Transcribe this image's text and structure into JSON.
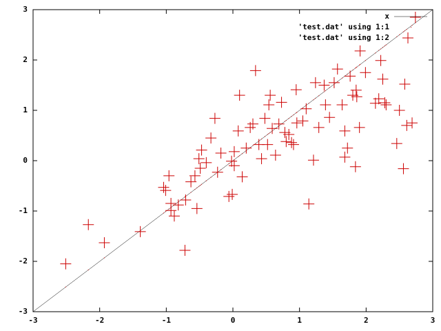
{
  "chart_data": {
    "type": "scatter",
    "xlim": [
      -3,
      3
    ],
    "ylim": [
      -3,
      3
    ],
    "xticks": [
      -3,
      -2,
      -1,
      0,
      1,
      2,
      3
    ],
    "yticks": [
      -3,
      -2,
      -1,
      0,
      1,
      2,
      3
    ],
    "legend": "top-right",
    "series": [
      {
        "name": "x",
        "style": "line",
        "color": "#000000",
        "x": [
          -3,
          3
        ],
        "values": [
          -3,
          3
        ]
      },
      {
        "name": "'test.dat' using 1:1",
        "style": "dots",
        "color": "#cc0000",
        "x": [
          -2.51,
          -2.17,
          -1.93,
          -1.39,
          -1.04,
          -0.96,
          -0.93,
          -0.88,
          -0.82,
          -0.71,
          -0.72,
          -1.01,
          -0.93,
          -0.63,
          -0.57,
          -0.54,
          -0.51,
          -0.49,
          -0.47,
          -0.4,
          -0.33,
          -0.27,
          -0.23,
          -0.18,
          -0.06,
          -0.01,
          -0.02,
          0.02,
          0.1,
          0.08,
          0.14,
          0.2,
          0.26,
          0.3,
          0.34,
          0.39,
          0.43,
          0.48,
          0.54,
          0.59,
          0.56,
          0.64,
          0.69,
          0.73,
          0.78,
          0.84,
          0.88,
          0.96,
          0.95,
          1.05,
          1.1,
          1.14,
          1.21,
          1.24,
          1.29,
          1.39,
          1.45,
          1.52,
          1.57,
          1.64,
          1.68,
          1.68,
          1.72,
          1.76,
          1.8,
          1.84,
          1.86,
          1.9,
          1.91,
          1.99,
          2.14,
          2.19,
          2.22,
          2.25,
          2.3,
          2.46,
          2.5,
          2.56,
          2.58,
          2.61,
          2.69,
          2.74,
          0.02,
          0.52,
          0.8,
          0.91,
          1.37,
          1.85,
          2.28
        ],
        "values": [
          -2.51,
          -2.17,
          -1.93,
          -1.39,
          -1.04,
          -0.96,
          -0.93,
          -0.88,
          -0.82,
          -0.71,
          -0.72,
          -1.01,
          -0.93,
          -0.63,
          -0.57,
          -0.54,
          -0.51,
          -0.49,
          -0.47,
          -0.4,
          -0.33,
          -0.27,
          -0.23,
          -0.18,
          -0.06,
          -0.01,
          -0.02,
          0.02,
          0.1,
          0.08,
          0.14,
          0.2,
          0.26,
          0.3,
          0.34,
          0.39,
          0.43,
          0.48,
          0.54,
          0.59,
          0.56,
          0.64,
          0.69,
          0.73,
          0.78,
          0.84,
          0.88,
          0.96,
          0.95,
          1.05,
          1.1,
          1.14,
          1.21,
          1.24,
          1.29,
          1.39,
          1.45,
          1.52,
          1.57,
          1.64,
          1.68,
          1.68,
          1.72,
          1.76,
          1.8,
          1.84,
          1.86,
          1.9,
          1.91,
          1.99,
          2.14,
          2.19,
          2.22,
          2.25,
          2.3,
          2.46,
          2.5,
          2.56,
          2.58,
          2.61,
          2.69,
          2.74,
          0.02,
          0.52,
          0.8,
          0.91,
          1.37,
          1.85,
          2.28
        ]
      },
      {
        "name": "'test.dat' using 1:2",
        "style": "plus",
        "color": "#cc0000",
        "x": [
          -2.51,
          -2.17,
          -1.93,
          -1.39,
          -1.04,
          -0.96,
          -0.93,
          -0.88,
          -0.82,
          -0.71,
          -0.72,
          -1.01,
          -0.93,
          -0.63,
          -0.57,
          -0.54,
          -0.51,
          -0.49,
          -0.47,
          -0.4,
          -0.33,
          -0.27,
          -0.23,
          -0.18,
          -0.06,
          -0.01,
          -0.02,
          0.02,
          0.1,
          0.08,
          0.14,
          0.2,
          0.26,
          0.3,
          0.34,
          0.39,
          0.43,
          0.48,
          0.54,
          0.59,
          0.56,
          0.64,
          0.69,
          0.73,
          0.78,
          0.84,
          0.88,
          0.96,
          0.95,
          1.05,
          1.1,
          1.14,
          1.21,
          1.24,
          1.29,
          1.39,
          1.45,
          1.52,
          1.57,
          1.64,
          1.68,
          1.68,
          1.72,
          1.76,
          1.8,
          1.84,
          1.86,
          1.9,
          1.91,
          1.99,
          2.14,
          2.19,
          2.22,
          2.25,
          2.3,
          2.46,
          2.5,
          2.56,
          2.58,
          2.61,
          2.69,
          2.74,
          0.02,
          0.52,
          0.8,
          0.91,
          1.37,
          1.85,
          2.28
        ],
        "values": [
          -2.05,
          -1.27,
          -1.63,
          -1.41,
          -0.53,
          -0.3,
          -0.99,
          -1.1,
          -0.88,
          -0.78,
          -1.78,
          -0.59,
          -0.85,
          -0.42,
          -0.3,
          -0.95,
          0.04,
          -0.15,
          0.21,
          -0.04,
          0.45,
          0.84,
          -0.23,
          0.15,
          -0.71,
          -0.67,
          -0.01,
          0.18,
          1.3,
          0.59,
          -0.32,
          0.25,
          0.66,
          0.73,
          1.79,
          0.32,
          0.04,
          0.84,
          1.11,
          0.64,
          1.3,
          0.11,
          0.73,
          1.16,
          0.56,
          0.52,
          0.36,
          0.75,
          1.41,
          0.79,
          1.03,
          -0.86,
          0.01,
          1.55,
          0.66,
          1.11,
          0.86,
          1.55,
          1.82,
          1.11,
          0.59,
          0.07,
          0.25,
          1.68,
          1.3,
          -0.12,
          1.27,
          0.66,
          2.18,
          1.75,
          1.14,
          1.23,
          1.99,
          1.62,
          1.11,
          0.34,
          1.0,
          -0.16,
          1.52,
          0.7,
          0.75,
          2.85,
          -0.1,
          0.32,
          0.38,
          0.32,
          1.5,
          1.4,
          1.15
        ]
      }
    ]
  }
}
